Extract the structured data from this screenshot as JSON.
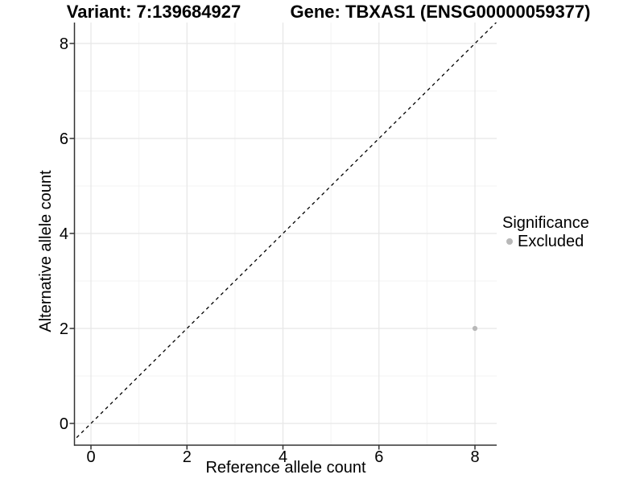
{
  "figure": {
    "background": "#ffffff",
    "title_left": "Variant: 7:139684927",
    "title_right": "Gene: TBXAS1 (ENSG00000059377)"
  },
  "axes": {
    "x": {
      "label": "Reference allele count",
      "ticks": [
        0,
        2,
        4,
        6,
        8
      ]
    },
    "y": {
      "label": "Alternative allele count",
      "ticks": [
        0,
        2,
        4,
        6,
        8
      ]
    }
  },
  "legend": {
    "title": "Significance",
    "items": [
      {
        "label": "Excluded",
        "color": "#b8b8b8"
      }
    ]
  },
  "chart_data": {
    "type": "scatter",
    "title": "Variant: 7:139684927 — Gene: TBXAS1 (ENSG00000059377)",
    "xlabel": "Reference allele count",
    "ylabel": "Alternative allele count",
    "xlim": [
      -0.42,
      8.45
    ],
    "ylim": [
      -0.46,
      8.45
    ],
    "x_ticks": [
      0,
      2,
      4,
      6,
      8
    ],
    "y_ticks": [
      0,
      2,
      4,
      6,
      8
    ],
    "grid": "major and minor gridlines, white panel",
    "legend_position": "right",
    "series": [
      {
        "name": "Excluded",
        "color": "#b8b8b8",
        "points": [
          [
            8,
            2
          ]
        ]
      }
    ],
    "reference_line": {
      "kind": "identity y=x",
      "style": "dashed",
      "color": "#000000"
    }
  },
  "colors": {
    "grid_major": "#e7e7e7",
    "grid_minor": "#f3f3f3",
    "axis_line": "#333333",
    "tick_mark": "#333333",
    "text": "#000000",
    "point": "#b8b8b8"
  }
}
